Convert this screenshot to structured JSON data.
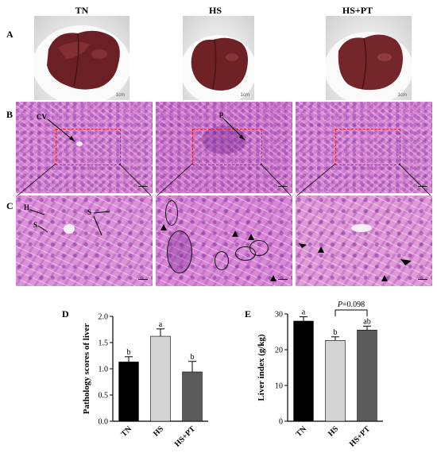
{
  "columns": [
    "TN",
    "HS",
    "HS+PT"
  ],
  "row_labels": [
    "A",
    "B",
    "C"
  ],
  "photo_scale_text": "1cm",
  "annotations": {
    "cv": "CV",
    "p": "p",
    "h": "H",
    "s": "S"
  },
  "chart_data": [
    {
      "panel": "D",
      "type": "bar",
      "categories": [
        "TN",
        "HS",
        "HS+PT"
      ],
      "values": [
        1.13,
        1.62,
        0.94
      ],
      "errors": [
        0.1,
        0.14,
        0.2
      ],
      "significance": [
        "b",
        "a",
        "b"
      ],
      "colors": [
        "#000000",
        "#d4d4d4",
        "#5a5a5a"
      ],
      "ylabel": "Pathology scores of liver",
      "ylim": [
        0,
        2.0
      ],
      "yticks": [
        "0.0",
        "0.5",
        "1.0",
        "1.5",
        "2.0"
      ]
    },
    {
      "panel": "E",
      "type": "bar",
      "categories": [
        "TN",
        "HS",
        "HS+PT"
      ],
      "values": [
        28.0,
        22.6,
        25.5
      ],
      "errors": [
        1.2,
        1.0,
        1.1
      ],
      "significance": [
        "a",
        "b",
        "ab"
      ],
      "colors": [
        "#000000",
        "#d4d4d4",
        "#5a5a5a"
      ],
      "ylabel": "Liver index (g/kg)",
      "ylim": [
        0,
        30
      ],
      "yticks": [
        "0",
        "10",
        "20",
        "30"
      ],
      "comparison": {
        "between": [
          "HS",
          "HS+PT"
        ],
        "label_italic": "P",
        "label_rest": "=0.098"
      }
    }
  ]
}
